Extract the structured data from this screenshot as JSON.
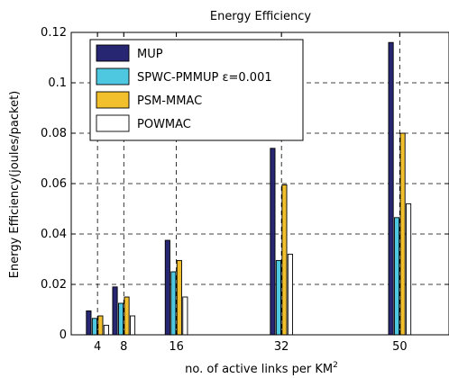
{
  "chart_data": {
    "type": "bar",
    "title": "Energy Efficiency",
    "xlabel": "no. of active links per KM",
    "xlabel_sup": "2",
    "ylabel": "Energy Efficiency(joules/packet)",
    "x": [
      4,
      8,
      16,
      32,
      50
    ],
    "x_tick_labels": [
      "4",
      "8",
      "16",
      "32",
      "50"
    ],
    "y_tick_labels": [
      "0",
      "0.02",
      "0.04",
      "0.06",
      "0.08",
      "0.1",
      "0.12"
    ],
    "xlim": [
      0,
      57.5
    ],
    "ylim": [
      0,
      0.12
    ],
    "grid": true,
    "legend_position": "top-left",
    "series": [
      {
        "name": "MUP",
        "color": "#262673",
        "values": [
          0.0095,
          0.019,
          0.0375,
          0.074,
          0.116
        ]
      },
      {
        "name": "SPWC-PMMUP ε=0.001",
        "color": "#4dc8e0",
        "values": [
          0.0065,
          0.0125,
          0.025,
          0.0295,
          0.0465
        ]
      },
      {
        "name": "PSM-MMAC",
        "color": "#f2c02d",
        "values": [
          0.0075,
          0.015,
          0.0295,
          0.0595,
          0.08
        ]
      },
      {
        "name": "POWMAC",
        "color": "#ffffff",
        "values": [
          0.0038,
          0.0075,
          0.015,
          0.032,
          0.052
        ]
      }
    ]
  }
}
